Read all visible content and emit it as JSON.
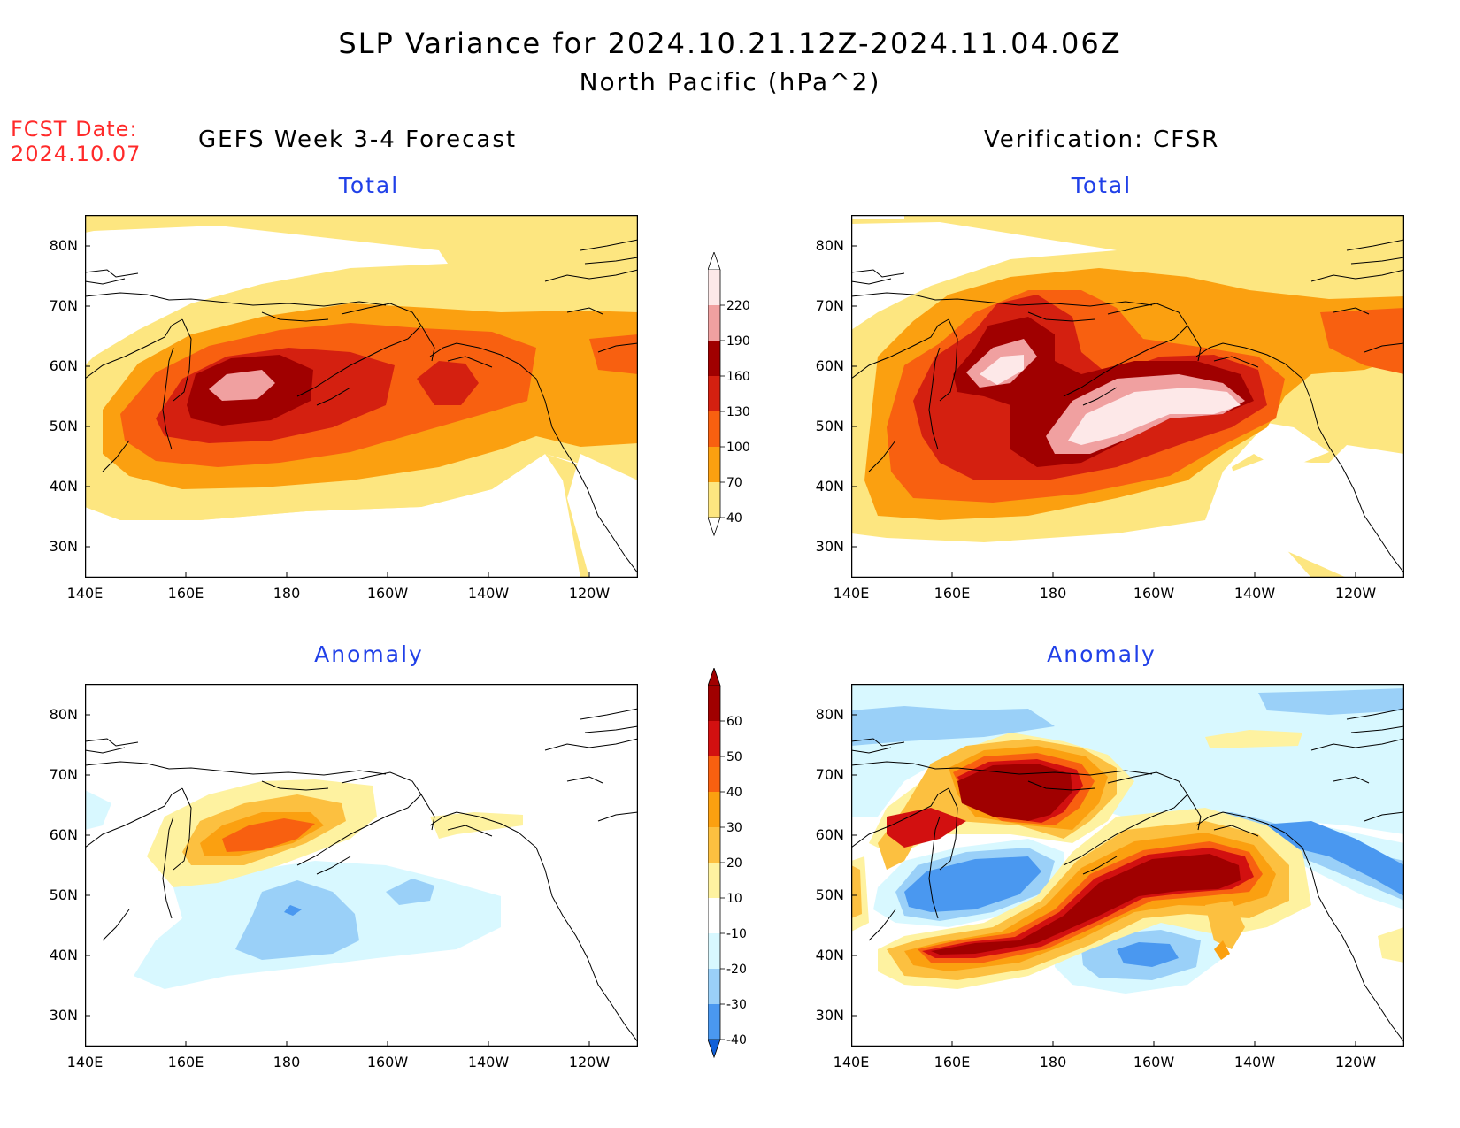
{
  "title_line1": "SLP Variance for 2024.10.21.12Z-2024.11.04.06Z",
  "title_line2": "North Pacific (hPa^2)",
  "fcst_label": "FCST Date:",
  "fcst_date": "2024.10.07",
  "left_column_title": "GEFS Week 3-4 Forecast",
  "right_column_title": "Verification: CFSR",
  "panels": {
    "top_left": {
      "subtitle": "Total"
    },
    "top_right": {
      "subtitle": "Total"
    },
    "bottom_left": {
      "subtitle": "Anomaly"
    },
    "bottom_right": {
      "subtitle": "Anomaly"
    }
  },
  "lat_labels": [
    "80N",
    "70N",
    "60N",
    "50N",
    "40N",
    "30N"
  ],
  "lon_labels": [
    "140E",
    "160E",
    "180",
    "160W",
    "140W",
    "120W"
  ],
  "colorbar_total": {
    "labels": [
      "220",
      "190",
      "160",
      "130",
      "100",
      "70",
      "40"
    ],
    "colors": [
      "#fde8e8",
      "#f0a0a0",
      "#a00000",
      "#d42010",
      "#f86010",
      "#fba010",
      "#fde680"
    ]
  },
  "colorbar_anomaly": {
    "labels": [
      "60",
      "50",
      "40",
      "30",
      "20",
      "10",
      "-10",
      "-20",
      "-30",
      "-40"
    ],
    "colors": [
      "#a00000",
      "#d21010",
      "#f86010",
      "#fba010",
      "#fcc040",
      "#fef2a0",
      "#ffffff",
      "#d8f8ff",
      "#9ad0f8",
      "#4a98f0",
      "#1060d8"
    ]
  },
  "fill_colors": {
    "c40": "#fde680",
    "c70": "#fba010",
    "c100": "#f86010",
    "c130": "#d42010",
    "c160": "#a00000",
    "c190": "#f0a0a0",
    "c220": "#fde8e8",
    "p10": "#fef2a0",
    "p20": "#fcc040",
    "p30": "#fba010",
    "p40": "#f86010",
    "p50": "#d21010",
    "p60": "#a00000",
    "n10": "#d8f8ff",
    "n20": "#9ad0f8",
    "n30": "#4a98f0",
    "n40": "#1060d8"
  }
}
